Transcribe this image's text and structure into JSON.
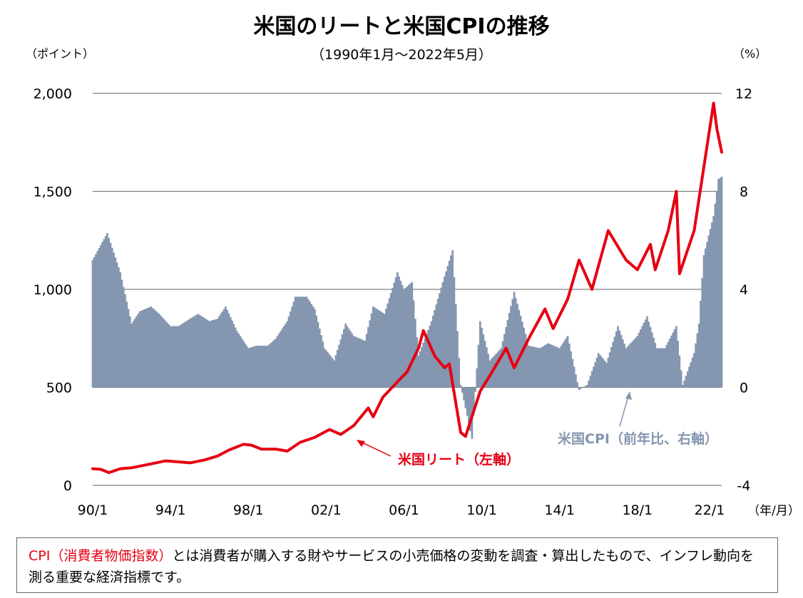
{
  "title": "米国のリートと米国CPIの推移",
  "subtitle": "（1990年1月～2022年5月）",
  "left_unit": "（ポイント）",
  "right_unit": "（%）",
  "x_unit": "（年/月）",
  "colors": {
    "reit": "#e60012",
    "cpi": "#8496b0",
    "grid": "#808080",
    "reit_label": "#e60012",
    "cpi_label": "#8496b0"
  },
  "note": {
    "highlight": "CPI（消費者物価指数）",
    "text": "とは消費者が購入する財やサービスの小売価格の変動を調査・算出したもので、インフレ動向を測る重要な経済指標です。"
  },
  "chart_data": {
    "type": "line+bar",
    "x_range": [
      "1990-01",
      "2022-05"
    ],
    "x_ticks": [
      "90/1",
      "94/1",
      "98/1",
      "02/1",
      "06/1",
      "10/1",
      "14/1",
      "18/1",
      "22/1"
    ],
    "left_axis": {
      "ticks": [
        "0",
        "500",
        "1,000",
        "1,500",
        "2,000"
      ],
      "ylim": [
        0,
        2000
      ]
    },
    "right_axis": {
      "ticks": [
        "-4",
        "0",
        "4",
        "8",
        "12"
      ],
      "ylim": [
        -4,
        12
      ]
    },
    "grid": true,
    "series": [
      {
        "name": "米国リート（左軸）",
        "type": "line",
        "axis": "left",
        "points": [
          [
            "1990-01",
            85
          ],
          [
            "1990-06",
            82
          ],
          [
            "1990-11",
            65
          ],
          [
            "1991-06",
            85
          ],
          [
            "1992-01",
            90
          ],
          [
            "1993-01",
            110
          ],
          [
            "1993-10",
            125
          ],
          [
            "1994-06",
            120
          ],
          [
            "1995-01",
            115
          ],
          [
            "1995-10",
            130
          ],
          [
            "1996-06",
            150
          ],
          [
            "1997-01",
            180
          ],
          [
            "1997-10",
            210
          ],
          [
            "1998-03",
            205
          ],
          [
            "1998-09",
            185
          ],
          [
            "1999-06",
            185
          ],
          [
            "2000-01",
            175
          ],
          [
            "2000-09",
            220
          ],
          [
            "2001-06",
            245
          ],
          [
            "2002-03",
            285
          ],
          [
            "2002-10",
            260
          ],
          [
            "2003-06",
            305
          ],
          [
            "2004-03",
            395
          ],
          [
            "2004-06",
            350
          ],
          [
            "2004-12",
            450
          ],
          [
            "2005-08",
            520
          ],
          [
            "2006-03",
            580
          ],
          [
            "2006-10",
            700
          ],
          [
            "2007-01",
            790
          ],
          [
            "2007-08",
            660
          ],
          [
            "2008-02",
            600
          ],
          [
            "2008-05",
            620
          ],
          [
            "2008-12",
            270
          ],
          [
            "2009-03",
            250
          ],
          [
            "2009-12",
            480
          ],
          [
            "2010-06",
            560
          ],
          [
            "2011-04",
            700
          ],
          [
            "2011-09",
            600
          ],
          [
            "2012-06",
            750
          ],
          [
            "2013-04",
            900
          ],
          [
            "2013-09",
            800
          ],
          [
            "2014-06",
            950
          ],
          [
            "2015-01",
            1150
          ],
          [
            "2015-09",
            1000
          ],
          [
            "2016-07",
            1300
          ],
          [
            "2017-06",
            1150
          ],
          [
            "2018-01",
            1100
          ],
          [
            "2018-09",
            1230
          ],
          [
            "2018-12",
            1100
          ],
          [
            "2019-08",
            1300
          ],
          [
            "2020-01",
            1500
          ],
          [
            "2020-03",
            1080
          ],
          [
            "2020-12",
            1300
          ],
          [
            "2021-12",
            1950
          ],
          [
            "2022-02",
            1820
          ],
          [
            "2022-05",
            1700
          ]
        ]
      },
      {
        "name": "米国CPI（前年比、右軸）",
        "type": "bar",
        "axis": "right",
        "points": [
          [
            "1990-01",
            5.2
          ],
          [
            "1990-10",
            6.3
          ],
          [
            "1991-01",
            5.7
          ],
          [
            "1991-06",
            4.7
          ],
          [
            "1992-01",
            2.6
          ],
          [
            "1992-06",
            3.1
          ],
          [
            "1993-01",
            3.3
          ],
          [
            "1993-06",
            3.0
          ],
          [
            "1994-01",
            2.5
          ],
          [
            "1994-06",
            2.5
          ],
          [
            "1995-01",
            2.8
          ],
          [
            "1995-06",
            3.0
          ],
          [
            "1996-01",
            2.7
          ],
          [
            "1996-06",
            2.8
          ],
          [
            "1996-11",
            3.3
          ],
          [
            "1997-06",
            2.3
          ],
          [
            "1998-01",
            1.6
          ],
          [
            "1998-06",
            1.7
          ],
          [
            "1999-01",
            1.7
          ],
          [
            "1999-06",
            2.0
          ],
          [
            "2000-01",
            2.7
          ],
          [
            "2000-06",
            3.7
          ],
          [
            "2001-01",
            3.7
          ],
          [
            "2001-06",
            3.2
          ],
          [
            "2001-12",
            1.6
          ],
          [
            "2002-06",
            1.1
          ],
          [
            "2003-01",
            2.6
          ],
          [
            "2003-06",
            2.1
          ],
          [
            "2004-01",
            1.9
          ],
          [
            "2004-06",
            3.3
          ],
          [
            "2005-01",
            3.0
          ],
          [
            "2005-09",
            4.7
          ],
          [
            "2006-01",
            4.0
          ],
          [
            "2006-06",
            4.3
          ],
          [
            "2006-10",
            1.3
          ],
          [
            "2007-06",
            2.7
          ],
          [
            "2008-01",
            4.3
          ],
          [
            "2008-07",
            5.6
          ],
          [
            "2008-12",
            0.1
          ],
          [
            "2009-07",
            -2.1
          ],
          [
            "2009-12",
            2.7
          ],
          [
            "2010-06",
            1.1
          ],
          [
            "2011-01",
            1.6
          ],
          [
            "2011-09",
            3.9
          ],
          [
            "2012-06",
            1.7
          ],
          [
            "2013-01",
            1.6
          ],
          [
            "2013-06",
            1.8
          ],
          [
            "2014-01",
            1.6
          ],
          [
            "2014-06",
            2.1
          ],
          [
            "2015-01",
            -0.1
          ],
          [
            "2015-06",
            0.1
          ],
          [
            "2016-01",
            1.4
          ],
          [
            "2016-06",
            1.0
          ],
          [
            "2017-01",
            2.5
          ],
          [
            "2017-06",
            1.6
          ],
          [
            "2018-01",
            2.1
          ],
          [
            "2018-07",
            2.9
          ],
          [
            "2019-01",
            1.6
          ],
          [
            "2019-06",
            1.6
          ],
          [
            "2020-01",
            2.5
          ],
          [
            "2020-05",
            0.1
          ],
          [
            "2020-12",
            1.4
          ],
          [
            "2021-03",
            2.6
          ],
          [
            "2021-06",
            5.4
          ],
          [
            "2021-12",
            7.0
          ],
          [
            "2022-03",
            8.5
          ],
          [
            "2022-05",
            8.6
          ]
        ]
      }
    ],
    "annotations": [
      {
        "text": "米国リート（左軸）",
        "target_series": "米国リート（左軸）"
      },
      {
        "text": "米国CPI（前年比、右軸）",
        "target_series": "米国CPI（前年比、右軸）"
      }
    ]
  }
}
